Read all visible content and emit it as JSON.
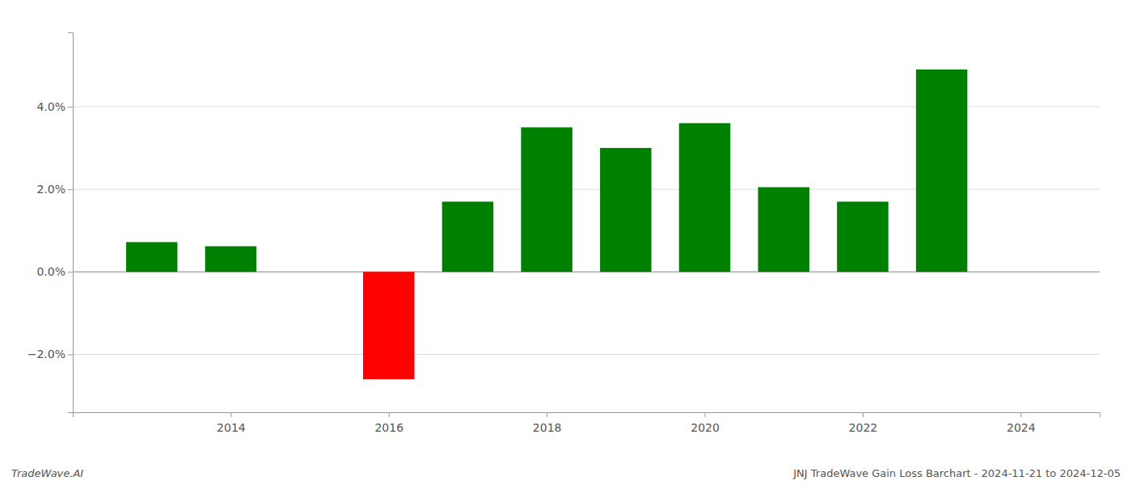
{
  "chart_data": {
    "type": "bar",
    "x": [
      2013,
      2014,
      2016,
      2017,
      2018,
      2019,
      2020,
      2021,
      2022,
      2023
    ],
    "values": [
      0.0072,
      0.0062,
      -0.026,
      0.017,
      0.035,
      0.03,
      0.036,
      0.0205,
      0.017,
      0.049
    ],
    "colors": [
      "#008000",
      "#008000",
      "#ff0000",
      "#008000",
      "#008000",
      "#008000",
      "#008000",
      "#008000",
      "#008000",
      "#008000"
    ],
    "xlim": [
      2012.0,
      2025.0
    ],
    "xticks": [
      2014,
      2016,
      2018,
      2020,
      2022,
      2024
    ],
    "ylim": [
      -0.034,
      0.058
    ],
    "yticks": [
      {
        "value": -0.02,
        "label": "−2.0%"
      },
      {
        "value": 0.0,
        "label": "0.0%"
      },
      {
        "value": 0.02,
        "label": "2.0%"
      },
      {
        "value": 0.04,
        "label": "4.0%"
      }
    ],
    "grid": true,
    "annotations": [
      "TradeWave.AI",
      "JNJ TradeWave Gain Loss Barchart - 2024-11-21 to 2024-12-05"
    ]
  }
}
